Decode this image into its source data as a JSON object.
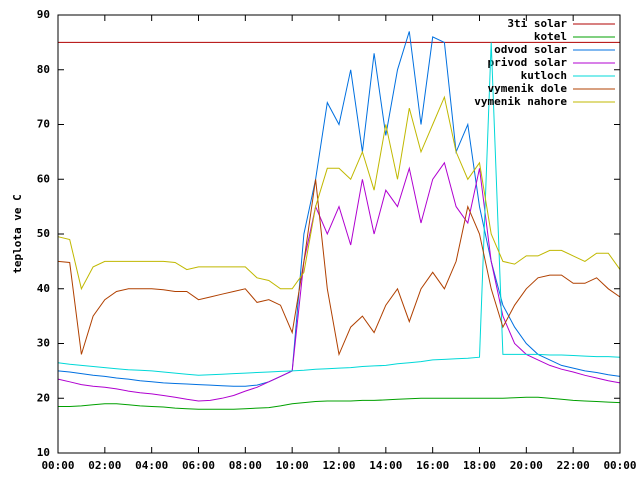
{
  "chart_data": {
    "type": "line",
    "y_label": "teplota ve C",
    "x": [
      0,
      0.5,
      1,
      1.5,
      2,
      2.5,
      3,
      3.5,
      4,
      4.5,
      5,
      5.5,
      6,
      6.5,
      7,
      7.5,
      8,
      8.5,
      9,
      9.5,
      10,
      10.5,
      11,
      11.5,
      12,
      12.5,
      13,
      13.5,
      14,
      14.5,
      15,
      15.5,
      16,
      16.5,
      17,
      17.5,
      18,
      18.5,
      19,
      19.5,
      20,
      20.5,
      21,
      21.5,
      22,
      22.5,
      23,
      23.5,
      24
    ],
    "xlim": [
      0,
      24
    ],
    "xticks": [
      {
        "value": 0,
        "label": "00:00"
      },
      {
        "value": 2,
        "label": "02:00"
      },
      {
        "value": 4,
        "label": "04:00"
      },
      {
        "value": 6,
        "label": "06:00"
      },
      {
        "value": 8,
        "label": "08:00"
      },
      {
        "value": 10,
        "label": "10:00"
      },
      {
        "value": 12,
        "label": "12:00"
      },
      {
        "value": 14,
        "label": "14:00"
      },
      {
        "value": 16,
        "label": "16:00"
      },
      {
        "value": 18,
        "label": "18:00"
      },
      {
        "value": 20,
        "label": "20:00"
      },
      {
        "value": 22,
        "label": "22:00"
      },
      {
        "value": 24,
        "label": "00:00"
      }
    ],
    "ylim": [
      10,
      90
    ],
    "yticks": [
      10,
      20,
      30,
      40,
      50,
      60,
      70,
      80,
      90
    ],
    "legend": "top-right",
    "series": [
      {
        "name": "3ti solar",
        "color": "#b00000",
        "values": [
          85,
          85,
          85,
          85,
          85,
          85,
          85,
          85,
          85,
          85,
          85,
          85,
          85,
          85,
          85,
          85,
          85,
          85,
          85,
          85,
          85,
          85,
          85,
          85,
          85,
          85,
          85,
          85,
          85,
          85,
          85,
          85,
          85,
          85,
          85,
          85,
          85,
          85,
          85,
          85,
          85,
          85,
          85,
          85,
          85,
          85,
          85,
          85,
          85
        ]
      },
      {
        "name": "kotel",
        "color": "#00a000",
        "values": [
          18.5,
          18.5,
          18.6,
          18.8,
          19,
          19,
          18.8,
          18.6,
          18.5,
          18.4,
          18.2,
          18.1,
          18,
          18,
          18,
          18,
          18.1,
          18.2,
          18.3,
          18.6,
          19,
          19.2,
          19.4,
          19.5,
          19.5,
          19.5,
          19.6,
          19.6,
          19.7,
          19.8,
          19.9,
          20,
          20,
          20,
          20,
          20,
          20,
          20,
          20,
          20.1,
          20.2,
          20.2,
          20,
          19.8,
          19.6,
          19.5,
          19.4,
          19.3,
          19.2
        ]
      },
      {
        "name": "odvod solar",
        "color": "#0070e0",
        "values": [
          25,
          24.8,
          24.5,
          24.2,
          24,
          23.7,
          23.5,
          23.2,
          23,
          22.8,
          22.7,
          22.6,
          22.5,
          22.4,
          22.3,
          22.2,
          22.2,
          22.4,
          23,
          24,
          25,
          50,
          60,
          74,
          70,
          80,
          65,
          83,
          68,
          80,
          87,
          70,
          86,
          85,
          65,
          70,
          55,
          45,
          37,
          33,
          30,
          28,
          27,
          26,
          25.5,
          25,
          24.7,
          24.3,
          24
        ]
      },
      {
        "name": "privod solar",
        "color": "#b000d0",
        "values": [
          23.5,
          23,
          22.5,
          22.2,
          22,
          21.7,
          21.3,
          21,
          20.8,
          20.5,
          20.2,
          19.8,
          19.5,
          19.6,
          20,
          20.5,
          21.3,
          22,
          23,
          24,
          25,
          45,
          55,
          50,
          55,
          48,
          60,
          50,
          58,
          55,
          62,
          52,
          60,
          63,
          55,
          52,
          62,
          45,
          35,
          30,
          28,
          27,
          26,
          25.3,
          24.8,
          24.2,
          23.7,
          23.2,
          22.8
        ]
      },
      {
        "name": "kutloch",
        "color": "#00d8d8",
        "values": [
          26.5,
          26.2,
          26,
          25.8,
          25.6,
          25.4,
          25.2,
          25.1,
          25,
          24.8,
          24.6,
          24.4,
          24.2,
          24.3,
          24.4,
          24.5,
          24.6,
          24.7,
          24.8,
          24.9,
          25,
          25.1,
          25.3,
          25.4,
          25.5,
          25.6,
          25.8,
          25.9,
          26,
          26.3,
          26.5,
          26.7,
          27,
          27.1,
          27.2,
          27.3,
          27.5,
          85,
          28,
          28,
          28,
          28,
          27.9,
          27.9,
          27.8,
          27.7,
          27.6,
          27.6,
          27.5
        ]
      },
      {
        "name": "vymenik dole",
        "color": "#b04000",
        "values": [
          45,
          44.8,
          28,
          35,
          38,
          39.5,
          40,
          40,
          40,
          39.8,
          39.5,
          39.5,
          38,
          38.5,
          39,
          39.5,
          40,
          37.5,
          38,
          37,
          32,
          45,
          60,
          40,
          28,
          33,
          35,
          32,
          37,
          40,
          34,
          40,
          43,
          40,
          45,
          55,
          50,
          40,
          33,
          37,
          40,
          42,
          42.5,
          42.5,
          41,
          41,
          42,
          40,
          38.5
        ]
      },
      {
        "name": "vymenik nahore",
        "color": "#c0b800",
        "values": [
          49.5,
          49,
          40,
          44,
          45,
          45,
          45,
          45,
          45,
          45,
          44.8,
          43.5,
          44,
          44,
          44,
          44,
          44,
          42,
          41.5,
          40,
          40,
          43,
          55,
          62,
          62,
          60,
          65,
          58,
          70,
          60,
          73,
          65,
          70,
          75,
          65,
          60,
          63,
          50,
          45,
          44.5,
          46,
          46,
          47,
          47,
          46,
          45,
          46.5,
          46.5,
          43.5
        ]
      }
    ]
  }
}
